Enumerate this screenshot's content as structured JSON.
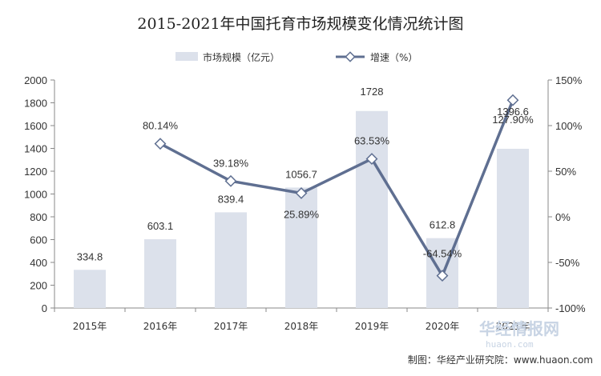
{
  "title": "2015-2021年中国托育市场规模变化情况统计图",
  "legend": {
    "bar_label": "市场规模（亿元）",
    "line_label": "增速（%）"
  },
  "source": "制图：华经产业研究院：www.huaon.com",
  "watermark": {
    "main": "华经情报网",
    "sub": "huaon.com"
  },
  "colors": {
    "bar": "#dce1eb",
    "line": "#5f6f91",
    "marker_fill": "#ffffff"
  },
  "chart_data": {
    "type": "bar",
    "categories": [
      "2015年",
      "2016年",
      "2017年",
      "2018年",
      "2019年",
      "2020年",
      "2021年"
    ],
    "series": [
      {
        "name": "市场规模（亿元）",
        "type": "bar",
        "axis": "left",
        "values": [
          334.8,
          603.1,
          839.4,
          1056.7,
          1728,
          612.8,
          1396.6
        ],
        "labels": [
          "334.8",
          "603.1",
          "839.4",
          "1056.7",
          "1728",
          "612.8",
          "1396.6"
        ]
      },
      {
        "name": "增速（%）",
        "type": "line",
        "axis": "right",
        "values": [
          null,
          80.14,
          39.18,
          25.89,
          63.53,
          -64.54,
          127.9
        ],
        "labels": [
          null,
          "80.14%",
          "39.18%",
          "25.89%",
          "63.53%",
          "-64.54%",
          "127.90%"
        ]
      }
    ],
    "y_left": {
      "range": [
        0,
        2000
      ],
      "ticks": [
        0,
        200,
        400,
        600,
        800,
        1000,
        1200,
        1400,
        1600,
        1800,
        2000
      ],
      "tick_labels": [
        "0",
        "200",
        "400",
        "600",
        "800",
        "1000",
        "1200",
        "1400",
        "1600",
        "1800",
        "2000"
      ]
    },
    "y_right": {
      "range": [
        -100,
        150
      ],
      "ticks": [
        -100,
        -50,
        0,
        50,
        100,
        150
      ],
      "tick_labels": [
        "-100%",
        "-50%",
        "0%",
        "50%",
        "100%",
        "150%"
      ]
    },
    "grid": false,
    "legend_position": "top-center"
  }
}
